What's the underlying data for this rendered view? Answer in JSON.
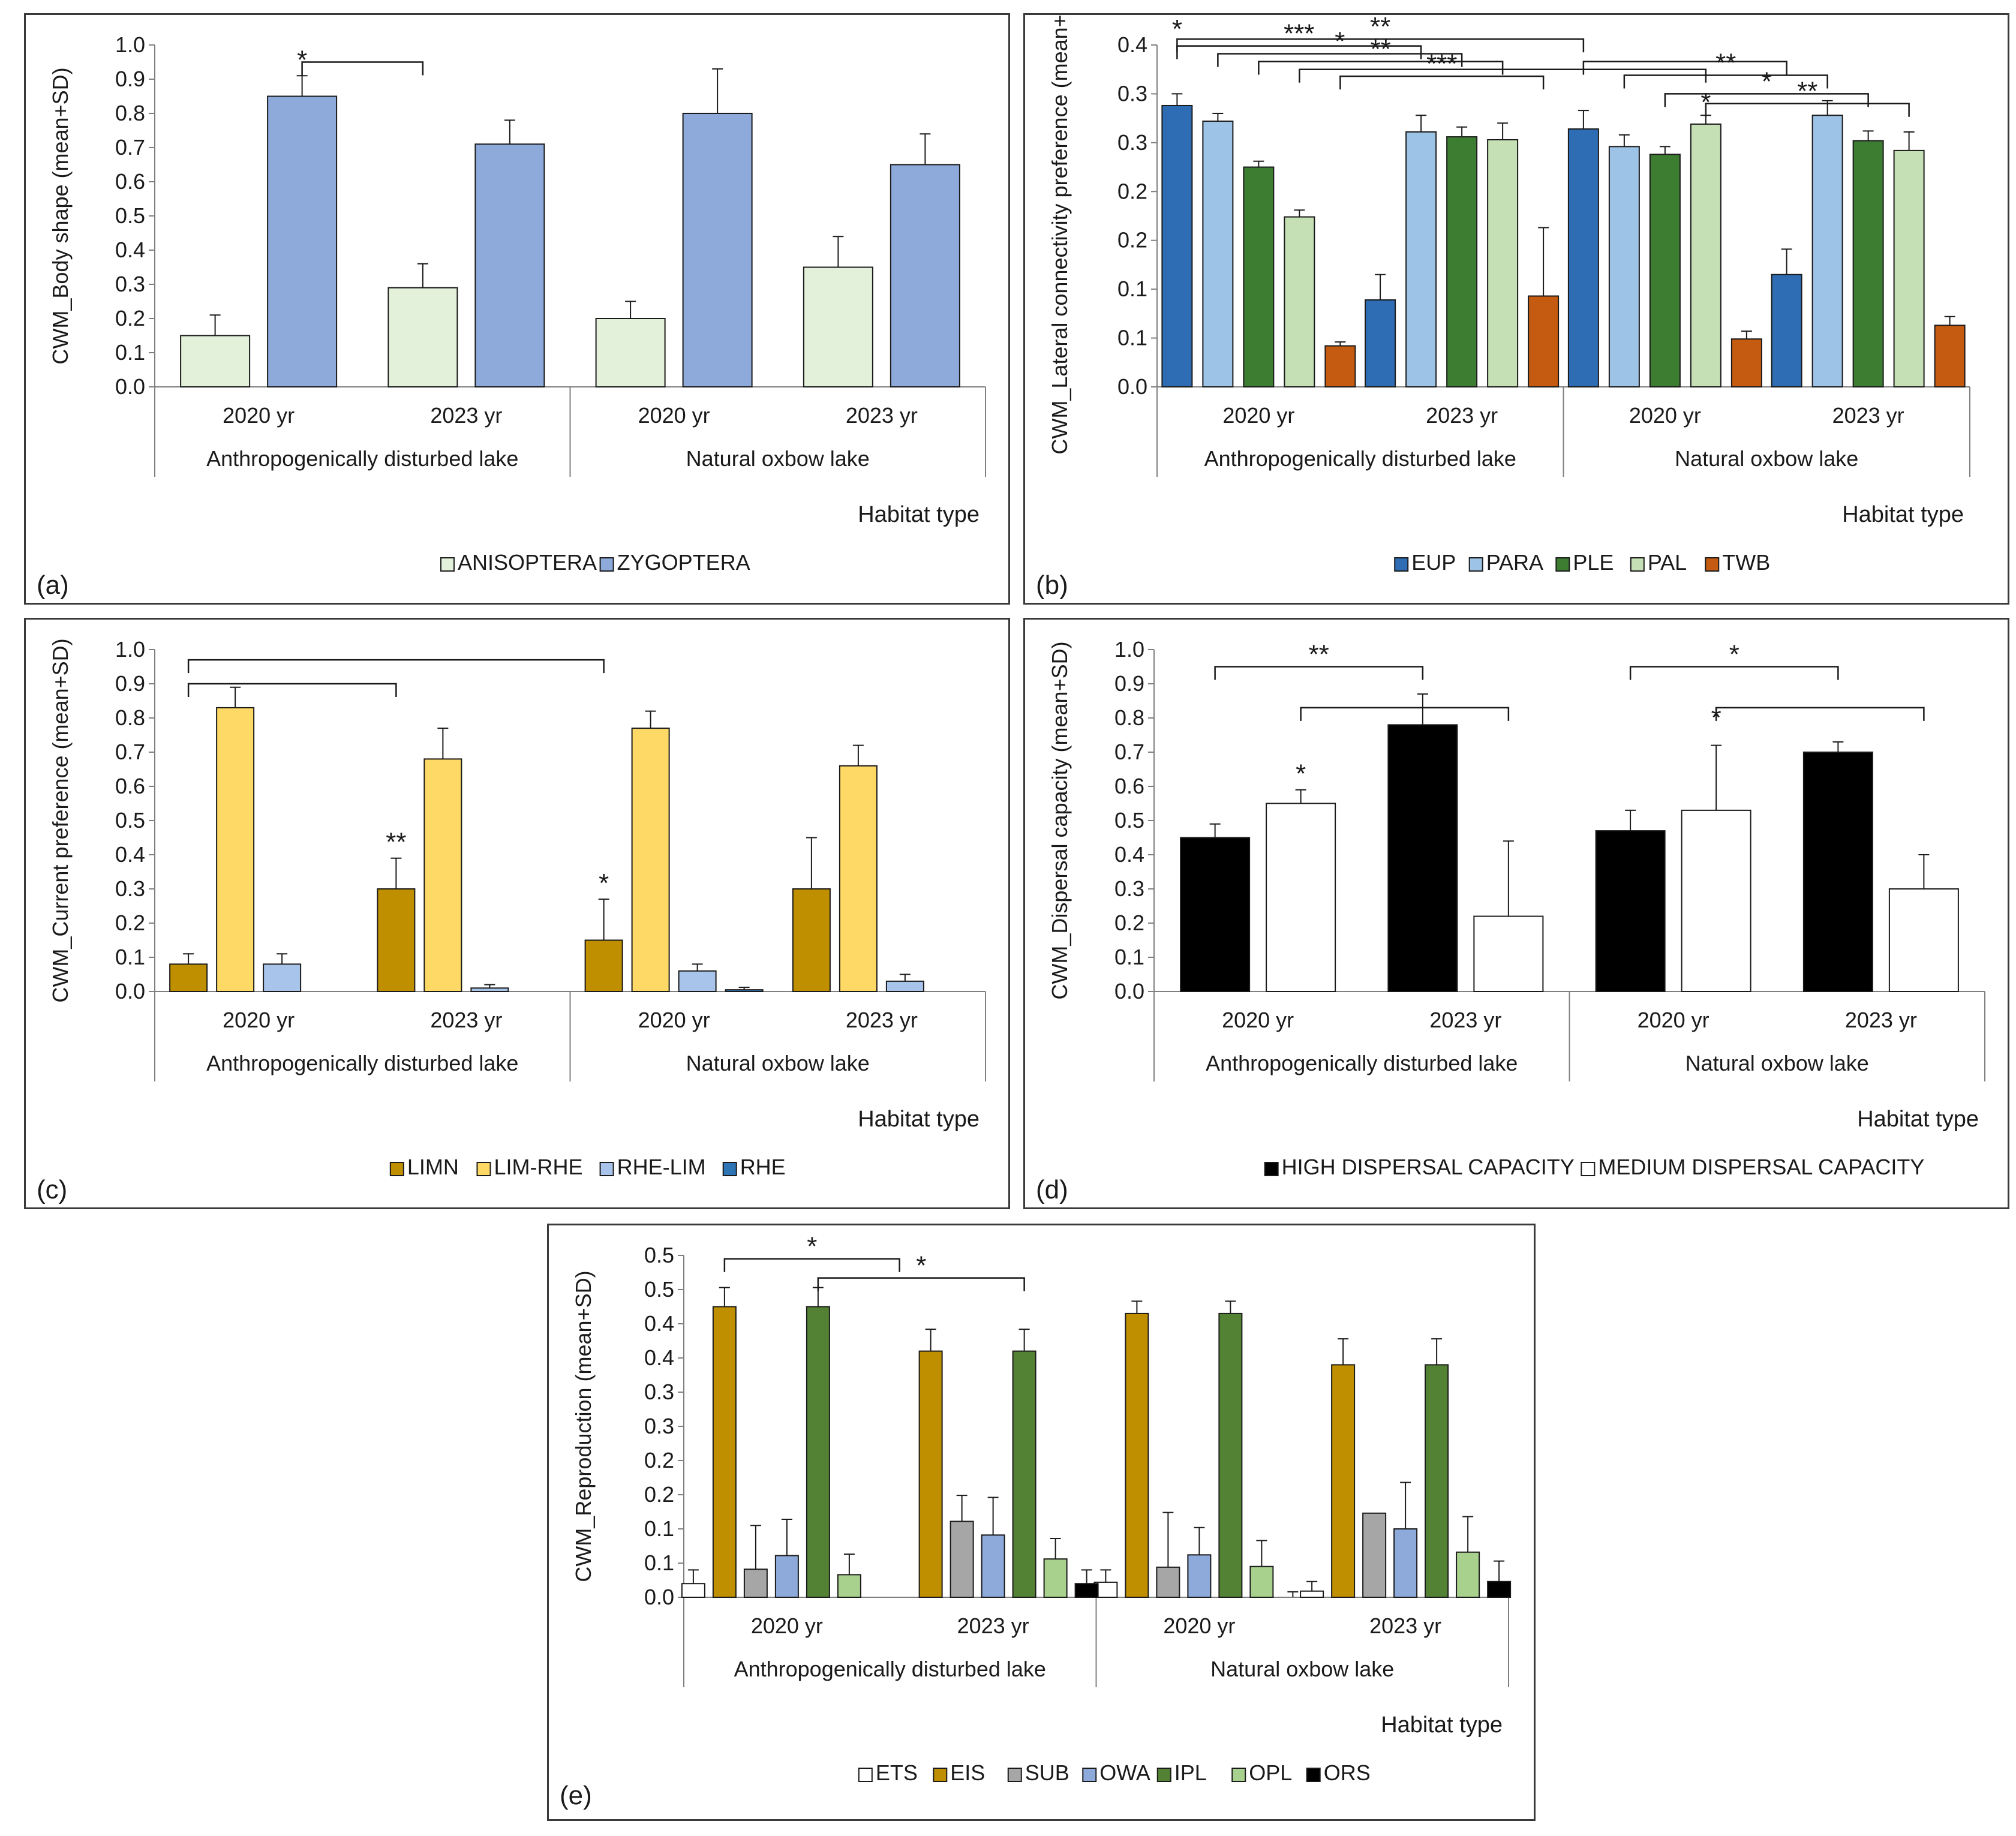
{
  "chart_data": [
    {
      "id": "a",
      "type": "bar",
      "panel_label": "(a)",
      "ylabel": "CWM_Body shape (mean+SD)",
      "xlabel": "Habitat type",
      "ylim": [
        0,
        1.0
      ],
      "yticks": [
        "0.0",
        "0.1",
        "0.2",
        "0.3",
        "0.4",
        "0.5",
        "0.6",
        "0.7",
        "0.8",
        "0.9",
        "1.0"
      ],
      "groups": [
        "Anthropogenically disturbed lake",
        "Natural oxbow lake"
      ],
      "categories": [
        "2020 yr",
        "2023 yr",
        "2020 yr",
        "2023 yr"
      ],
      "series": [
        {
          "name": "ANISOPTERA",
          "color": "#e3f0da",
          "values": [
            0.15,
            0.29,
            0.2,
            0.35
          ],
          "sd": [
            0.06,
            0.07,
            0.05,
            0.09
          ]
        },
        {
          "name": "ZYGOPTERA",
          "color": "#8eaadb",
          "values": [
            0.85,
            0.71,
            0.8,
            0.65
          ],
          "sd": [
            0.06,
            0.07,
            0.13,
            0.09
          ]
        }
      ],
      "stars": [
        {
          "text": "*",
          "cat": 0,
          "series": 1
        }
      ],
      "brackets": [
        {
          "from": [
            0,
            1
          ],
          "to": [
            1,
            0
          ],
          "level": 0.95,
          "label": ""
        }
      ]
    },
    {
      "id": "b",
      "type": "bar",
      "panel_label": "(b)",
      "ylabel": "CWM_Lateral connectivity preference (mean+SD)",
      "xlabel": "Habitat type",
      "ylim": [
        0,
        0.35
      ],
      "yticks": [
        "0.0",
        "0.1",
        "0.1",
        "0.2",
        "0.2",
        "0.3",
        "0.3",
        "0.4"
      ],
      "groups": [
        "Anthropogenically disturbed lake",
        "Natural oxbow lake"
      ],
      "categories": [
        "2020 yr",
        "2023 yr",
        "2020 yr",
        "2023 yr"
      ],
      "series": [
        {
          "name": "EUP",
          "color": "#2e6db4",
          "values": [
            0.288,
            0.089,
            0.264,
            0.115
          ],
          "sd": [
            0.012,
            0.026,
            0.019,
            0.026
          ]
        },
        {
          "name": "PARA",
          "color": "#9dc3e6",
          "values": [
            0.272,
            0.261,
            0.246,
            0.278
          ],
          "sd": [
            0.008,
            0.017,
            0.012,
            0.015
          ]
        },
        {
          "name": "PLE",
          "color": "#3c7d32",
          "values": [
            0.225,
            0.256,
            0.238,
            0.252
          ],
          "sd": [
            0.006,
            0.01,
            0.008,
            0.01
          ]
        },
        {
          "name": "PAL",
          "color": "#c5e0b4",
          "values": [
            0.174,
            0.253,
            0.269,
            0.242
          ],
          "sd": [
            0.007,
            0.017,
            0.009,
            0.019
          ]
        },
        {
          "name": "TWB",
          "color": "#c55a11",
          "values": [
            0.042,
            0.093,
            0.049,
            0.063
          ],
          "sd": [
            0.004,
            0.07,
            0.008,
            0.009
          ]
        }
      ],
      "brackets": [
        {
          "from": [
            0,
            0
          ],
          "to": [
            1,
            1
          ],
          "level": 0.349,
          "label": "***"
        },
        {
          "from": [
            0,
            0
          ],
          "to": [
            2,
            0
          ],
          "level": 0.356,
          "label": "**"
        },
        {
          "from": [
            0,
            1
          ],
          "to": [
            1,
            2
          ],
          "level": 0.341,
          "label": "*"
        },
        {
          "from": [
            0,
            2
          ],
          "to": [
            1,
            3
          ],
          "level": 0.333,
          "label": "**"
        },
        {
          "from": [
            0,
            3
          ],
          "to": [
            2,
            3
          ],
          "level": 0.325,
          "label": ""
        },
        {
          "from": [
            0,
            4
          ],
          "to": [
            1,
            4
          ],
          "level": 0.318,
          "label": "***"
        },
        {
          "from": [
            2,
            0
          ],
          "to": [
            3,
            0
          ],
          "level": 0.333,
          "label": ""
        },
        {
          "from": [
            2,
            1
          ],
          "to": [
            3,
            1
          ],
          "level": 0.319,
          "label": "**"
        },
        {
          "from": [
            2,
            2
          ],
          "to": [
            3,
            2
          ],
          "level": 0.3,
          "label": "*"
        },
        {
          "from": [
            2,
            3
          ],
          "to": [
            3,
            3
          ],
          "level": 0.29,
          "label": "**"
        }
      ],
      "free_labels": [
        {
          "text": "*",
          "cat": 0,
          "series": 0,
          "level": 0.366
        },
        {
          "text": "*",
          "cat": 2,
          "series": 3,
          "level": 0.291
        }
      ]
    },
    {
      "id": "c",
      "type": "bar",
      "panel_label": "(c)",
      "ylabel": "CWM_Current preference (mean+SD)",
      "xlabel": "Habitat type",
      "ylim": [
        0,
        1.0
      ],
      "yticks": [
        "0.0",
        "0.1",
        "0.2",
        "0.3",
        "0.4",
        "0.5",
        "0.6",
        "0.7",
        "0.8",
        "0.9",
        "1.0"
      ],
      "groups": [
        "Anthropogenically disturbed lake",
        "Natural oxbow lake"
      ],
      "categories": [
        "2020 yr",
        "2023 yr",
        "2020 yr",
        "2023 yr"
      ],
      "series": [
        {
          "name": "LIMN",
          "color": "#bf8f00",
          "values": [
            0.08,
            0.3,
            0.15,
            0.3
          ],
          "sd": [
            0.03,
            0.09,
            0.12,
            0.15
          ]
        },
        {
          "name": "LIM-RHE",
          "color": "#ffd966",
          "values": [
            0.83,
            0.68,
            0.77,
            0.66
          ],
          "sd": [
            0.06,
            0.09,
            0.05,
            0.06
          ]
        },
        {
          "name": "RHE-LIM",
          "color": "#a9c4eb",
          "values": [
            0.08,
            0.01,
            0.06,
            0.03
          ],
          "sd": [
            0.03,
            0.01,
            0.02,
            0.02
          ]
        },
        {
          "name": "RHE",
          "color": "#2e75b6",
          "values": [
            0.0,
            0.0,
            0.005,
            0.0
          ],
          "sd": [
            0.0,
            0.0,
            0.007,
            0.0
          ]
        }
      ],
      "stars": [
        {
          "text": "**",
          "cat": 1,
          "series": 0
        },
        {
          "text": "*",
          "cat": 2,
          "series": 0
        }
      ],
      "brackets": [
        {
          "from": [
            0,
            0
          ],
          "to": [
            1,
            0
          ],
          "level": 0.9,
          "label": ""
        },
        {
          "from": [
            0,
            0
          ],
          "to": [
            2,
            0
          ],
          "level": 0.97,
          "label": ""
        }
      ]
    },
    {
      "id": "d",
      "type": "bar",
      "panel_label": "(d)",
      "ylabel": "CWM_Dispersal capacity (mean+SD)",
      "xlabel": "Habitat type",
      "ylim": [
        0,
        1.0
      ],
      "yticks": [
        "0.0",
        "0.1",
        "0.2",
        "0.3",
        "0.4",
        "0.5",
        "0.6",
        "0.7",
        "0.8",
        "0.9",
        "1.0"
      ],
      "groups": [
        "Anthropogenically disturbed lake",
        "Natural oxbow lake"
      ],
      "categories": [
        "2020 yr",
        "2023 yr",
        "2020 yr",
        "2023 yr"
      ],
      "series": [
        {
          "name": "HIGH DISPERSAL CAPACITY",
          "color": "#000000",
          "values": [
            0.45,
            0.78,
            0.47,
            0.7
          ],
          "sd": [
            0.04,
            0.09,
            0.06,
            0.03
          ]
        },
        {
          "name": "MEDIUM DISPERSAL CAPACITY",
          "color": "#ffffff",
          "values": [
            0.55,
            0.22,
            0.53,
            0.3
          ],
          "sd": [
            0.04,
            0.22,
            0.19,
            0.1
          ]
        }
      ],
      "stars": [
        {
          "text": "*",
          "cat": 0,
          "series": 1
        }
      ],
      "brackets": [
        {
          "from": [
            0,
            0
          ],
          "to": [
            1,
            0
          ],
          "level": 0.95,
          "label": "**"
        },
        {
          "from": [
            0,
            1
          ],
          "to": [
            1,
            1
          ],
          "level": 0.83,
          "label": ""
        },
        {
          "from": [
            2,
            0
          ],
          "to": [
            3,
            0
          ],
          "level": 0.95,
          "label": "*"
        },
        {
          "from": [
            2,
            1
          ],
          "to": [
            3,
            1
          ],
          "level": 0.83,
          "label": ""
        }
      ],
      "free_labels": [
        {
          "text": "*",
          "cat": 2,
          "series": 1,
          "level": 0.8
        }
      ]
    },
    {
      "id": "e",
      "type": "bar",
      "panel_label": "(e)",
      "ylabel": "CWM_Reproduction (mean+SD)",
      "xlabel": "Habitat type",
      "ylim": [
        0,
        0.5
      ],
      "yticks": [
        "0.0",
        "0.1",
        "0.1",
        "0.2",
        "0.2",
        "0.3",
        "0.3",
        "0.4",
        "0.4",
        "0.5",
        "0.5"
      ],
      "groups": [
        "Anthropogenically disturbed lake",
        "Natural oxbow lake"
      ],
      "categories": [
        "2020 yr",
        "2023 yr",
        "2020 yr",
        "2023 yr"
      ],
      "series": [
        {
          "name": "ETS",
          "color": "#ffffff",
          "values": [
            0.02,
            0.0,
            0.022,
            0.009
          ],
          "sd": [
            0.02,
            0.0,
            0.018,
            0.014
          ]
        },
        {
          "name": "EIS",
          "color": "#bf8f00",
          "values": [
            0.425,
            0.36,
            0.415,
            0.34
          ],
          "sd": [
            0.028,
            0.032,
            0.018,
            0.038
          ]
        },
        {
          "name": "SUB",
          "color": "#a6a6a6",
          "values": [
            0.041,
            0.111,
            0.044,
            0.123
          ],
          "sd": [
            0.064,
            0.038,
            0.08,
            0.0
          ]
        },
        {
          "name": "OWA",
          "color": "#8eaadb",
          "values": [
            0.061,
            0.091,
            0.062,
            0.1
          ],
          "sd": [
            0.053,
            0.055,
            0.04,
            0.068
          ]
        },
        {
          "name": "IPL",
          "color": "#548235",
          "values": [
            0.425,
            0.36,
            0.415,
            0.34
          ],
          "sd": [
            0.028,
            0.032,
            0.018,
            0.038
          ]
        },
        {
          "name": "OPL",
          "color": "#a9d18e",
          "values": [
            0.033,
            0.056,
            0.045,
            0.066
          ],
          "sd": [
            0.03,
            0.03,
            0.038,
            0.052
          ]
        },
        {
          "name": "ORS",
          "color": "#000000",
          "values": [
            0.0,
            0.02,
            0.0,
            0.023
          ],
          "sd": [
            0.0,
            0.02,
            0.008,
            0.03
          ]
        }
      ],
      "brackets": [
        {
          "from": [
            0,
            1
          ],
          "to": [
            1,
            0
          ],
          "level": 0.495,
          "label": "*"
        },
        {
          "from": [
            0,
            4
          ],
          "to": [
            1,
            4
          ],
          "level": 0.467,
          "label": "*"
        }
      ]
    }
  ]
}
